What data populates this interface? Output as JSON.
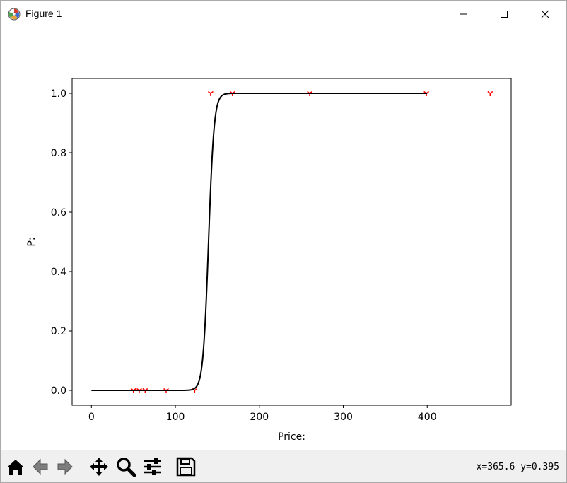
{
  "window": {
    "title": "Figure 1",
    "icon": "matplotlib-logo-icon"
  },
  "toolbar": {
    "buttons": [
      {
        "name": "home-icon"
      },
      {
        "name": "back-icon"
      },
      {
        "name": "forward-icon"
      },
      {
        "name": "pan-icon"
      },
      {
        "name": "zoom-icon"
      },
      {
        "name": "configure-subplots-icon"
      },
      {
        "name": "save-icon"
      }
    ],
    "coords": "x=365.6  y=0.395"
  },
  "chart_data": {
    "type": "scatter",
    "xlabel": "Price:",
    "ylabel": "P:",
    "xlim": [
      -23,
      500
    ],
    "ylim": [
      -0.05,
      1.05
    ],
    "xticks": [
      0,
      100,
      200,
      300,
      400
    ],
    "yticks": [
      0.0,
      0.2,
      0.4,
      0.6,
      0.8,
      1.0
    ],
    "xtick_labels": [
      "0",
      "100",
      "200",
      "300",
      "400"
    ],
    "ytick_labels": [
      "0.0",
      "0.2",
      "0.4",
      "0.6",
      "0.8",
      "1.0"
    ],
    "grid": false,
    "series": [
      {
        "kind": "points",
        "marker": "Y",
        "color": "#ff0000",
        "x": [
          50,
          57,
          64,
          89,
          123,
          142,
          168,
          260,
          399,
          475
        ],
        "y": [
          0,
          0,
          0,
          0,
          0,
          1,
          1,
          1,
          1,
          1
        ]
      },
      {
        "kind": "curve",
        "color": "#000000",
        "function": "logistic",
        "midpoint": 139.5,
        "scale": 3.3,
        "x_range": [
          0,
          400
        ]
      }
    ]
  }
}
